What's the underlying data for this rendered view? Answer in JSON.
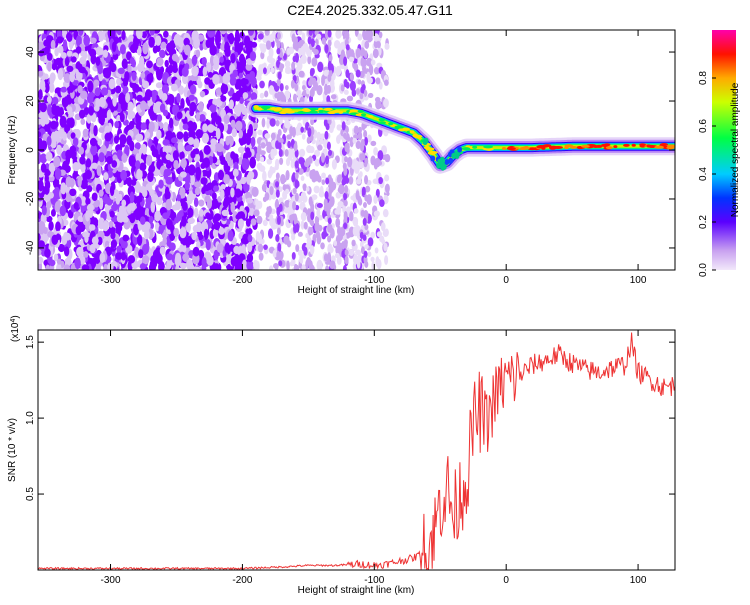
{
  "page_title": "C2E4.2025.332.05.47.G11",
  "chart_data": [
    {
      "type": "heatmap",
      "xlabel": "Height of straight line (km)",
      "ylabel": "Frequency (Hz)",
      "xlim": [
        -355,
        128
      ],
      "ylim": [
        -49,
        49
      ],
      "xticks": [
        -300,
        -200,
        -100,
        0,
        100
      ],
      "yticks": [
        -40,
        -20,
        0,
        20,
        40
      ],
      "colorbar": {
        "label": "Normalized spectral amplitude",
        "range": [
          0,
          1
        ],
        "ticks": [
          0.0,
          0.2,
          0.4,
          0.6,
          0.8
        ],
        "tick_labels": [
          "0.0",
          "0.2",
          "0.4",
          "0.6",
          "0.8"
        ]
      },
      "ridge": {
        "x": [
          -190,
          -180,
          -170,
          -160,
          -150,
          -140,
          -130,
          -120,
          -110,
          -100,
          -90,
          -80,
          -70,
          -62,
          -55,
          -50,
          -45,
          -40,
          -35,
          -30,
          -20,
          -10,
          0,
          20,
          50,
          80,
          100,
          128
        ],
        "y": [
          17,
          17,
          16,
          16,
          16,
          16,
          16,
          16,
          15,
          13,
          11,
          9,
          7,
          3,
          -2,
          -6,
          -5,
          -2,
          0,
          1,
          1,
          1,
          1,
          1,
          1.5,
          1.5,
          1.5,
          1.5
        ]
      },
      "noise_region_x": [
        -355,
        -190
      ],
      "sparse_noise_region_x": [
        -190,
        -100
      ]
    },
    {
      "type": "line",
      "xlabel": "Height of straight line (km)",
      "ylabel": "SNR (10 * v/v)",
      "y_multiplier": "(x10^4)",
      "xlim": [
        -355,
        128
      ],
      "ylim": [
        0,
        1.58
      ],
      "xticks": [
        -300,
        -200,
        -100,
        0,
        100
      ],
      "yticks": [
        0.5,
        1.0,
        1.5
      ],
      "ytick_labels": [
        "0.5",
        "1.0",
        "1.5"
      ],
      "color": "#ee3333",
      "series": [
        {
          "x": [
            -355,
            -300,
            -250,
            -200,
            -170,
            -150,
            -130,
            -110,
            -100,
            -90,
            -80,
            -70,
            -62,
            -55,
            -50,
            -45,
            -40,
            -35,
            -30,
            -25,
            -20,
            -15,
            -10,
            -5,
            0,
            10,
            20,
            30,
            40,
            50,
            60,
            70,
            80,
            90,
            95,
            100,
            110,
            120,
            128
          ],
          "y": [
            0.01,
            0.01,
            0.01,
            0.01,
            0.02,
            0.03,
            0.03,
            0.04,
            0.03,
            0.04,
            0.06,
            0.08,
            0.12,
            0.22,
            0.45,
            0.55,
            0.35,
            0.5,
            0.6,
            0.95,
            1.05,
            0.95,
            1.1,
            1.2,
            1.25,
            1.28,
            1.35,
            1.38,
            1.42,
            1.36,
            1.32,
            1.3,
            1.33,
            1.35,
            1.5,
            1.3,
            1.25,
            1.2,
            1.22
          ]
        }
      ]
    }
  ]
}
